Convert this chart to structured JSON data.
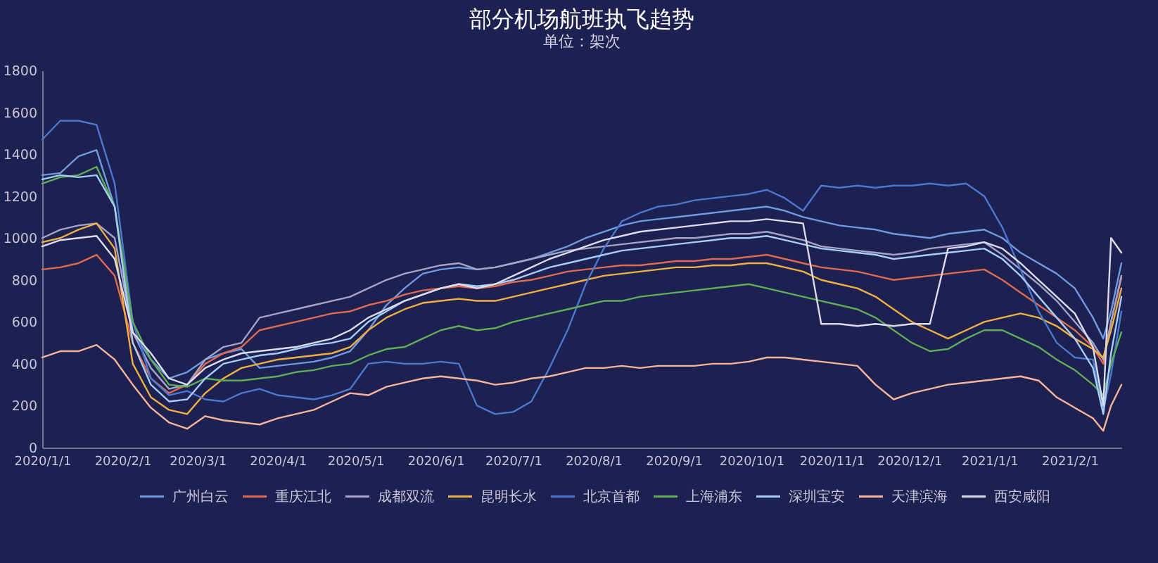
{
  "chart_data": {
    "type": "line",
    "title": "部分机场航班执飞趋势",
    "subtitle": "单位：架次",
    "x": [
      "2020-01-01",
      "2020-01-08",
      "2020-01-15",
      "2020-01-22",
      "2020-01-29",
      "2020-02-05",
      "2020-02-12",
      "2020-02-19",
      "2020-02-26",
      "2020-03-04",
      "2020-03-11",
      "2020-03-18",
      "2020-03-25",
      "2020-04-01",
      "2020-04-08",
      "2020-04-15",
      "2020-04-22",
      "2020-04-29",
      "2020-05-06",
      "2020-05-13",
      "2020-05-20",
      "2020-05-27",
      "2020-06-03",
      "2020-06-10",
      "2020-06-17",
      "2020-06-24",
      "2020-07-01",
      "2020-07-08",
      "2020-07-15",
      "2020-07-22",
      "2020-07-29",
      "2020-08-05",
      "2020-08-12",
      "2020-08-19",
      "2020-08-26",
      "2020-09-02",
      "2020-09-09",
      "2020-09-16",
      "2020-09-23",
      "2020-09-30",
      "2020-10-07",
      "2020-10-14",
      "2020-10-21",
      "2020-10-28",
      "2020-11-04",
      "2020-11-11",
      "2020-11-18",
      "2020-11-25",
      "2020-12-02",
      "2020-12-09",
      "2020-12-16",
      "2020-12-23",
      "2020-12-30",
      "2021-01-06",
      "2021-01-13",
      "2021-01-20",
      "2021-01-27",
      "2021-02-03",
      "2021-02-10",
      "2021-02-14",
      "2021-02-17",
      "2021-02-21"
    ],
    "xlim": [
      "2020-01-01",
      "2021-02-21"
    ],
    "xticks": [
      {
        "value": "2020-01-01",
        "label": "2020/1/1"
      },
      {
        "value": "2020-02-01",
        "label": "2020/2/1"
      },
      {
        "value": "2020-03-01",
        "label": "2020/3/1"
      },
      {
        "value": "2020-04-01",
        "label": "2020/4/1"
      },
      {
        "value": "2020-05-01",
        "label": "2020/5/1"
      },
      {
        "value": "2020-06-01",
        "label": "2020/6/1"
      },
      {
        "value": "2020-07-01",
        "label": "2020/7/1"
      },
      {
        "value": "2020-08-01",
        "label": "2020/8/1"
      },
      {
        "value": "2020-09-01",
        "label": "2020/9/1"
      },
      {
        "value": "2020-10-01",
        "label": "2020/10/1"
      },
      {
        "value": "2020-11-01",
        "label": "2020/11/1"
      },
      {
        "value": "2020-12-01",
        "label": "2020/12/1"
      },
      {
        "value": "2021-01-01",
        "label": "2021/1/1"
      },
      {
        "value": "2021-02-01",
        "label": "2021/2/1"
      }
    ],
    "ylim": [
      0,
      1800
    ],
    "yticks": [
      0,
      200,
      400,
      600,
      800,
      1000,
      1200,
      1400,
      1600,
      1800
    ],
    "legend": "bottom",
    "series": [
      {
        "name": "广州白云",
        "color": "#6f9ae0",
        "values": [
          1300,
          1310,
          1390,
          1420,
          1150,
          550,
          420,
          330,
          360,
          420,
          450,
          470,
          380,
          390,
          400,
          410,
          430,
          460,
          560,
          680,
          760,
          830,
          850,
          860,
          850,
          860,
          880,
          900,
          930,
          960,
          1000,
          1030,
          1060,
          1080,
          1090,
          1100,
          1110,
          1120,
          1130,
          1140,
          1150,
          1130,
          1100,
          1080,
          1060,
          1050,
          1040,
          1020,
          1010,
          1000,
          1020,
          1030,
          1040,
          1000,
          930,
          880,
          830,
          760,
          620,
          520,
          650,
          880
        ]
      },
      {
        "name": "重庆江北",
        "color": "#e06a50",
        "values": [
          850,
          860,
          880,
          920,
          820,
          500,
          330,
          260,
          300,
          400,
          450,
          480,
          560,
          580,
          600,
          620,
          640,
          650,
          680,
          700,
          730,
          750,
          760,
          770,
          760,
          770,
          790,
          800,
          820,
          840,
          850,
          860,
          870,
          870,
          880,
          890,
          890,
          900,
          900,
          910,
          920,
          900,
          880,
          860,
          850,
          840,
          820,
          800,
          810,
          820,
          830,
          840,
          850,
          800,
          740,
          680,
          620,
          560,
          480,
          400,
          600,
          810
        ]
      },
      {
        "name": "成都双流",
        "color": "#a6a3c8",
        "values": [
          1000,
          1040,
          1060,
          1070,
          1000,
          550,
          380,
          280,
          300,
          420,
          480,
          500,
          620,
          640,
          660,
          680,
          700,
          720,
          760,
          800,
          830,
          850,
          870,
          880,
          850,
          860,
          880,
          900,
          920,
          940,
          950,
          960,
          970,
          980,
          990,
          1000,
          1000,
          1010,
          1020,
          1020,
          1030,
          1010,
          990,
          960,
          950,
          940,
          930,
          920,
          930,
          950,
          960,
          970,
          980,
          920,
          850,
          780,
          700,
          600,
          500,
          420,
          600,
          820
        ]
      },
      {
        "name": "昆明长水",
        "color": "#f0b040",
        "values": [
          980,
          1000,
          1040,
          1070,
          950,
          400,
          240,
          180,
          160,
          260,
          330,
          380,
          400,
          420,
          430,
          440,
          450,
          480,
          560,
          620,
          660,
          690,
          700,
          710,
          700,
          700,
          720,
          740,
          760,
          780,
          800,
          820,
          830,
          840,
          850,
          860,
          860,
          870,
          870,
          880,
          880,
          860,
          840,
          800,
          780,
          760,
          720,
          660,
          600,
          560,
          520,
          560,
          600,
          620,
          640,
          620,
          580,
          520,
          470,
          430,
          560,
          760
        ]
      },
      {
        "name": "北京首都",
        "color": "#4a78d0",
        "values": [
          1470,
          1560,
          1560,
          1540,
          1260,
          600,
          330,
          250,
          270,
          230,
          220,
          260,
          280,
          250,
          240,
          230,
          250,
          280,
          400,
          410,
          400,
          400,
          410,
          400,
          200,
          160,
          170,
          220,
          380,
          560,
          780,
          950,
          1080,
          1120,
          1150,
          1160,
          1180,
          1190,
          1200,
          1210,
          1230,
          1190,
          1130,
          1250,
          1240,
          1250,
          1240,
          1250,
          1250,
          1260,
          1250,
          1260,
          1200,
          1050,
          850,
          650,
          500,
          430,
          420,
          180,
          350,
          650
        ]
      },
      {
        "name": "上海浦东",
        "color": "#5fae55",
        "values": [
          1260,
          1290,
          1300,
          1340,
          1150,
          600,
          420,
          300,
          290,
          330,
          320,
          320,
          330,
          340,
          360,
          370,
          390,
          400,
          440,
          470,
          480,
          520,
          560,
          580,
          560,
          570,
          600,
          620,
          640,
          660,
          680,
          700,
          700,
          720,
          730,
          740,
          750,
          760,
          770,
          780,
          760,
          740,
          720,
          700,
          680,
          660,
          620,
          560,
          500,
          460,
          470,
          520,
          560,
          560,
          520,
          480,
          420,
          370,
          300,
          250,
          400,
          550
        ]
      },
      {
        "name": "深圳宝安",
        "color": "#a8cdf5",
        "values": [
          1280,
          1300,
          1290,
          1300,
          1150,
          500,
          300,
          220,
          230,
          330,
          400,
          420,
          440,
          450,
          470,
          490,
          500,
          520,
          600,
          650,
          700,
          730,
          760,
          780,
          770,
          780,
          800,
          830,
          860,
          880,
          900,
          920,
          940,
          950,
          960,
          970,
          980,
          990,
          1000,
          1000,
          1010,
          990,
          970,
          950,
          940,
          930,
          920,
          900,
          910,
          920,
          930,
          940,
          950,
          900,
          820,
          720,
          620,
          520,
          380,
          160,
          450,
          720
        ]
      },
      {
        "name": "天津滨海",
        "color": "#f7b49a",
        "values": [
          430,
          460,
          460,
          490,
          420,
          300,
          190,
          120,
          90,
          150,
          130,
          120,
          110,
          140,
          160,
          180,
          220,
          260,
          250,
          290,
          310,
          330,
          340,
          330,
          320,
          300,
          310,
          330,
          340,
          360,
          380,
          380,
          390,
          380,
          390,
          390,
          390,
          400,
          400,
          410,
          430,
          430,
          420,
          410,
          400,
          390,
          300,
          230,
          260,
          280,
          300,
          310,
          320,
          330,
          340,
          320,
          240,
          190,
          140,
          80,
          200,
          300
        ]
      },
      {
        "name": "西安咸阳",
        "color": "#dcdcec",
        "values": [
          960,
          990,
          1000,
          1010,
          900,
          550,
          450,
          330,
          300,
          380,
          420,
          450,
          460,
          470,
          480,
          500,
          520,
          560,
          620,
          660,
          700,
          730,
          760,
          780,
          760,
          780,
          820,
          860,
          900,
          930,
          960,
          990,
          1010,
          1030,
          1040,
          1050,
          1060,
          1070,
          1080,
          1080,
          1090,
          1080,
          1070,
          590,
          590,
          580,
          590,
          580,
          590,
          590,
          950,
          960,
          980,
          950,
          880,
          800,
          720,
          640,
          480,
          200,
          1000,
          930
        ]
      }
    ]
  }
}
